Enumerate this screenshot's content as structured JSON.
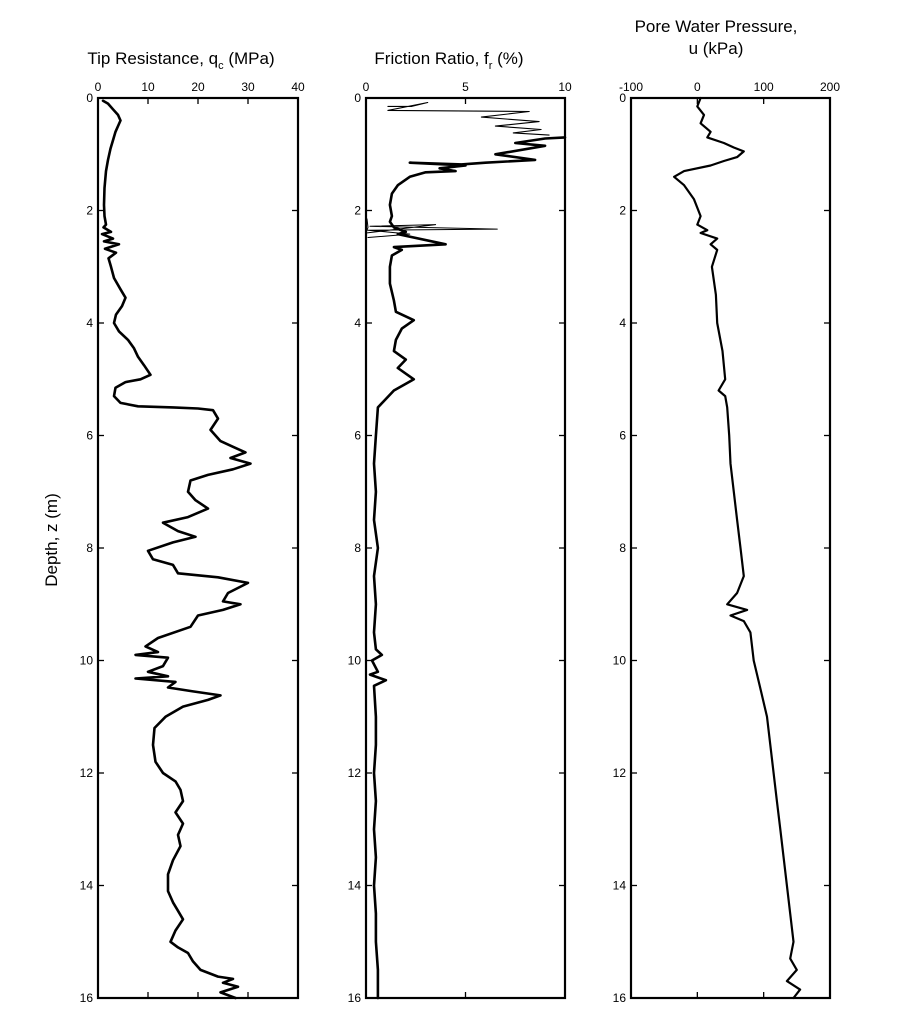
{
  "shared": {
    "ylabel": "Depth, z (m)",
    "ylim": [
      0,
      16
    ],
    "yticks": [
      0,
      2,
      4,
      6,
      8,
      10,
      12,
      14,
      16
    ]
  },
  "chart_data": [
    {
      "type": "line",
      "title_main": "Tip Resistance, q",
      "title_sub": "c",
      "title_unit": " (MPa)",
      "xlim": [
        0,
        40
      ],
      "xticks": [
        0,
        10,
        20,
        30,
        40
      ],
      "ylim": [
        0,
        16
      ],
      "series": [
        {
          "points": [
            [
              1,
              0.05
            ],
            [
              2,
              0.1
            ],
            [
              3,
              0.2
            ],
            [
              4,
              0.3
            ],
            [
              4.5,
              0.4
            ],
            [
              4,
              0.5
            ],
            [
              3.5,
              0.6
            ],
            [
              3,
              0.75
            ],
            [
              2.5,
              0.9
            ],
            [
              2,
              1.1
            ],
            [
              1.6,
              1.3
            ],
            [
              1.3,
              1.6
            ],
            [
              1.2,
              1.9
            ],
            [
              1.3,
              2.1
            ],
            [
              1.6,
              2.25
            ],
            [
              1.1,
              2.3
            ],
            [
              2.6,
              2.38
            ],
            [
              0.8,
              2.42
            ],
            [
              3,
              2.5
            ],
            [
              1.2,
              2.55
            ],
            [
              4.2,
              2.6
            ],
            [
              1.4,
              2.68
            ],
            [
              3.6,
              2.75
            ],
            [
              2.1,
              2.85
            ],
            [
              2.6,
              3
            ],
            [
              3.2,
              3.2
            ],
            [
              4.5,
              3.4
            ],
            [
              5.5,
              3.55
            ],
            [
              4.8,
              3.7
            ],
            [
              3.6,
              3.85
            ],
            [
              3.2,
              4
            ],
            [
              4.2,
              4.15
            ],
            [
              6,
              4.3
            ],
            [
              7.2,
              4.45
            ],
            [
              8,
              4.6
            ],
            [
              9.2,
              4.75
            ],
            [
              10.5,
              4.92
            ],
            [
              8.5,
              5
            ],
            [
              5.5,
              5.05
            ],
            [
              3.5,
              5.15
            ],
            [
              3.2,
              5.3
            ],
            [
              4.5,
              5.42
            ],
            [
              8,
              5.48
            ],
            [
              15,
              5.5
            ],
            [
              20,
              5.52
            ],
            [
              23,
              5.55
            ],
            [
              24,
              5.7
            ],
            [
              22.5,
              5.9
            ],
            [
              24.5,
              6.1
            ],
            [
              27,
              6.2
            ],
            [
              29.5,
              6.3
            ],
            [
              26.5,
              6.4
            ],
            [
              30.5,
              6.5
            ],
            [
              27,
              6.6
            ],
            [
              22,
              6.7
            ],
            [
              18.5,
              6.8
            ],
            [
              18,
              7
            ],
            [
              19.5,
              7.15
            ],
            [
              22,
              7.3
            ],
            [
              18,
              7.45
            ],
            [
              13,
              7.55
            ],
            [
              16,
              7.7
            ],
            [
              19.5,
              7.8
            ],
            [
              15,
              7.9
            ],
            [
              10,
              8.05
            ],
            [
              11,
              8.2
            ],
            [
              15,
              8.3
            ],
            [
              16,
              8.45
            ],
            [
              24,
              8.52
            ],
            [
              30,
              8.62
            ],
            [
              26,
              8.8
            ],
            [
              25,
              8.95
            ],
            [
              28.5,
              9
            ],
            [
              25,
              9.1
            ],
            [
              20,
              9.2
            ],
            [
              18.5,
              9.4
            ],
            [
              12,
              9.6
            ],
            [
              9.5,
              9.75
            ],
            [
              12,
              9.85
            ],
            [
              7.5,
              9.9
            ],
            [
              14,
              9.95
            ],
            [
              13,
              10.1
            ],
            [
              10,
              10.2
            ],
            [
              14,
              10.28
            ],
            [
              7.5,
              10.32
            ],
            [
              15.5,
              10.38
            ],
            [
              14,
              10.48
            ],
            [
              19,
              10.55
            ],
            [
              24.5,
              10.62
            ],
            [
              22,
              10.7
            ],
            [
              17,
              10.82
            ],
            [
              13.5,
              11
            ],
            [
              11.3,
              11.2
            ],
            [
              11,
              11.5
            ],
            [
              11.5,
              11.8
            ],
            [
              13,
              12
            ],
            [
              15.5,
              12.15
            ],
            [
              16.5,
              12.3
            ],
            [
              17,
              12.5
            ],
            [
              15.5,
              12.7
            ],
            [
              17,
              12.9
            ],
            [
              16,
              13.1
            ],
            [
              16.5,
              13.3
            ],
            [
              15,
              13.55
            ],
            [
              14,
              13.8
            ],
            [
              14,
              14.1
            ],
            [
              15,
              14.3
            ],
            [
              16,
              14.45
            ],
            [
              17,
              14.6
            ],
            [
              15.5,
              14.8
            ],
            [
              14.5,
              15
            ],
            [
              16,
              15.1
            ],
            [
              18,
              15.2
            ],
            [
              19,
              15.35
            ],
            [
              20.5,
              15.5
            ],
            [
              24,
              15.62
            ],
            [
              27,
              15.66
            ],
            [
              25,
              15.73
            ],
            [
              28,
              15.8
            ],
            [
              24.5,
              15.9
            ],
            [
              27.5,
              16
            ]
          ],
          "width": 2.6
        }
      ]
    },
    {
      "type": "line",
      "title_main": "Friction Ratio, f",
      "title_sub": "r",
      "title_unit": " (%)",
      "xlim": [
        0,
        10
      ],
      "xticks": [
        0,
        5,
        10
      ],
      "ylim": [
        0,
        16
      ],
      "series": [
        {
          "points": [
            [
              1.1,
              0.15
            ],
            [
              2.3,
              0.15
            ],
            [
              3.1,
              0.08
            ],
            [
              1.1,
              0.22
            ],
            [
              8.2,
              0.24
            ],
            [
              5.8,
              0.34
            ],
            [
              8.7,
              0.42
            ],
            [
              6.5,
              0.5
            ],
            [
              8.8,
              0.56
            ],
            [
              7.4,
              0.62
            ],
            [
              9.2,
              0.66
            ]
          ],
          "width": 1.1
        },
        {
          "points": [
            [
              10,
              0.7
            ],
            [
              9,
              0.72
            ],
            [
              7.5,
              0.8
            ],
            [
              9,
              0.85
            ],
            [
              6.5,
              1
            ],
            [
              8.5,
              1.1
            ],
            [
              6,
              1.15
            ],
            [
              4.8,
              1.18
            ],
            [
              2.2,
              1.15
            ],
            [
              5,
              1.2
            ],
            [
              3.7,
              1.25
            ],
            [
              4.5,
              1.3
            ],
            [
              3,
              1.32
            ],
            [
              2.2,
              1.4
            ],
            [
              1.6,
              1.55
            ],
            [
              1.3,
              1.7
            ],
            [
              1.2,
              1.9
            ],
            [
              1.3,
              2.1
            ],
            [
              1.2,
              2.2
            ],
            [
              1.4,
              2.3
            ],
            [
              2,
              2.38
            ],
            [
              1.6,
              2.42
            ],
            [
              4,
              2.6
            ],
            [
              1.4,
              2.65
            ],
            [
              1.8,
              2.7
            ],
            [
              1.3,
              2.8
            ],
            [
              1.2,
              3
            ],
            [
              1.2,
              3.3
            ],
            [
              1.4,
              3.6
            ],
            [
              1.5,
              3.8
            ],
            [
              2.4,
              3.95
            ],
            [
              1.8,
              4.1
            ],
            [
              1.5,
              4.3
            ],
            [
              1.4,
              4.5
            ],
            [
              2,
              4.65
            ],
            [
              1.6,
              4.8
            ],
            [
              2.4,
              5
            ],
            [
              1.4,
              5.2
            ],
            [
              0.6,
              5.5
            ],
            [
              0.5,
              6
            ],
            [
              0.4,
              6.5
            ],
            [
              0.5,
              7
            ],
            [
              0.4,
              7.5
            ],
            [
              0.6,
              8
            ],
            [
              0.4,
              8.5
            ],
            [
              0.5,
              9
            ],
            [
              0.4,
              9.5
            ],
            [
              0.5,
              9.8
            ],
            [
              0.8,
              9.9
            ],
            [
              0.3,
              10
            ],
            [
              0.6,
              10.2
            ],
            [
              0.2,
              10.25
            ],
            [
              1,
              10.35
            ],
            [
              0.4,
              10.45
            ],
            [
              0.5,
              11
            ],
            [
              0.5,
              11.5
            ],
            [
              0.4,
              12
            ],
            [
              0.5,
              12.5
            ],
            [
              0.4,
              13
            ],
            [
              0.5,
              13.5
            ],
            [
              0.4,
              14
            ],
            [
              0.5,
              14.5
            ],
            [
              0.5,
              15
            ],
            [
              0.6,
              15.5
            ],
            [
              0.6,
              16
            ]
          ],
          "width": 2.6
        },
        {
          "points": [
            [
              0.05,
              2.15
            ],
            [
              0.1,
              2.3
            ],
            [
              0,
              2.4
            ],
            [
              3.5,
              2.25
            ],
            [
              0.2,
              2.28
            ],
            [
              6.6,
              2.33
            ],
            [
              0.1,
              2.35
            ],
            [
              2.2,
              2.42
            ],
            [
              0.1,
              2.48
            ]
          ],
          "width": 1
        }
      ]
    },
    {
      "type": "line",
      "title_main": "Pore Water Pressure,",
      "title_line2": "u (kPa)",
      "xlim": [
        -100,
        200
      ],
      "xticks": [
        -100,
        0,
        100,
        200
      ],
      "ylim": [
        0,
        16
      ],
      "series": [
        {
          "points": [
            [
              5,
              0
            ],
            [
              0,
              0.15
            ],
            [
              10,
              0.3
            ],
            [
              5,
              0.45
            ],
            [
              20,
              0.6
            ],
            [
              15,
              0.7
            ],
            [
              40,
              0.8
            ],
            [
              55,
              0.88
            ],
            [
              70,
              0.95
            ],
            [
              60,
              1.05
            ],
            [
              40,
              1.12
            ],
            [
              20,
              1.2
            ],
            [
              -20,
              1.3
            ],
            [
              -35,
              1.4
            ],
            [
              -20,
              1.55
            ],
            [
              -5,
              1.8
            ],
            [
              5,
              2.1
            ],
            [
              0,
              2.25
            ],
            [
              15,
              2.35
            ],
            [
              5,
              2.4
            ],
            [
              30,
              2.5
            ],
            [
              20,
              2.6
            ],
            [
              30,
              2.7
            ],
            [
              22,
              3
            ],
            [
              28,
              3.5
            ],
            [
              30,
              4
            ],
            [
              38,
              4.5
            ],
            [
              42,
              5
            ],
            [
              32,
              5.2
            ],
            [
              42,
              5.3
            ],
            [
              45,
              5.5
            ],
            [
              48,
              6
            ],
            [
              50,
              6.5
            ],
            [
              55,
              7
            ],
            [
              60,
              7.5
            ],
            [
              65,
              8
            ],
            [
              70,
              8.5
            ],
            [
              60,
              8.8
            ],
            [
              45,
              9
            ],
            [
              75,
              9.1
            ],
            [
              50,
              9.2
            ],
            [
              70,
              9.3
            ],
            [
              80,
              9.5
            ],
            [
              85,
              10
            ],
            [
              95,
              10.5
            ],
            [
              105,
              11
            ],
            [
              110,
              11.5
            ],
            [
              115,
              12
            ],
            [
              120,
              12.5
            ],
            [
              125,
              13
            ],
            [
              130,
              13.5
            ],
            [
              135,
              14
            ],
            [
              140,
              14.5
            ],
            [
              145,
              15
            ],
            [
              140,
              15.3
            ],
            [
              150,
              15.5
            ],
            [
              135,
              15.7
            ],
            [
              155,
              15.85
            ],
            [
              145,
              16
            ]
          ],
          "width": 2.2
        }
      ]
    }
  ]
}
